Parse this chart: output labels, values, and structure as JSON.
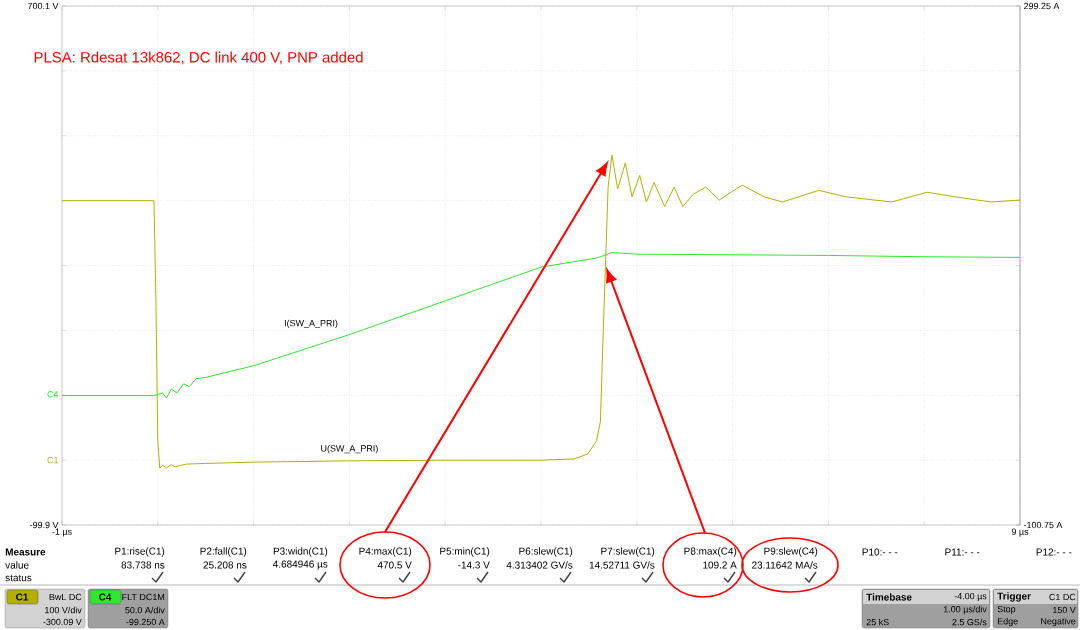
{
  "chart_data": {
    "type": "line",
    "title": "PLSA: Rdesat 13k862, DC link 400 V, PNP added",
    "xlim": [
      -1,
      9
    ],
    "xticks": [
      {
        "value": -1,
        "label": "-1 µs"
      },
      {
        "value": 0,
        "label": null
      },
      {
        "value": 1,
        "label": null
      },
      {
        "value": 2,
        "label": null
      },
      {
        "value": 3,
        "label": null
      },
      {
        "value": 4,
        "label": null
      },
      {
        "value": 5,
        "label": null
      },
      {
        "value": 6,
        "label": null
      },
      {
        "value": 7,
        "label": null
      },
      {
        "value": 8,
        "label": null
      },
      {
        "value": 9,
        "label": "9 µs"
      }
    ],
    "ylim": [
      -99.9,
      700.1
    ],
    "yticks": [
      {
        "value": -99.9,
        "label": "-99.9 V"
      },
      {
        "value": 0.1,
        "label": null
      },
      {
        "value": 100.1,
        "label": null
      },
      {
        "value": 200.1,
        "label": null
      },
      {
        "value": 300.1,
        "label": null
      },
      {
        "value": 400.1,
        "label": null
      },
      {
        "value": 500.1,
        "label": null
      },
      {
        "value": 600.1,
        "label": null
      },
      {
        "value": 700.1,
        "label": "700.1 V"
      }
    ],
    "y2lim": [
      -100.75,
      299.25
    ],
    "y2ticks": [
      {
        "value": -100.75,
        "label": "-100.75 A"
      },
      {
        "value": 299.25,
        "label": "299.25 A"
      }
    ],
    "grid": true,
    "series": [
      {
        "name": "U(SW_A_PRI)",
        "color": "#b4b000",
        "x": [
          -1,
          -0.04,
          -0.02,
          0.0,
          0.02,
          0.05,
          0.09,
          0.14,
          0.18,
          0.3,
          0.5,
          1.0,
          2.0,
          3.0,
          4.0,
          4.35,
          4.49,
          4.58,
          4.62,
          4.65,
          4.7,
          4.74,
          4.8,
          4.88,
          4.95,
          5.03,
          5.1,
          5.18,
          5.29,
          5.39,
          5.48,
          5.59,
          5.72,
          5.86,
          6.1,
          6.33,
          6.52,
          6.9,
          7.18,
          7.66,
          8.03,
          8.32,
          8.7,
          9.0
        ],
        "values": [
          400,
          400,
          250,
          30,
          -12,
          -8,
          -12,
          -7,
          -10,
          -6,
          -5,
          -3,
          -1,
          0,
          0,
          2,
          10,
          30,
          60,
          200,
          420,
          470.5,
          418,
          458,
          406,
          439,
          398,
          428,
          391,
          421,
          391,
          410,
          421,
          401,
          424,
          406,
          398,
          416,
          406,
          398,
          413,
          406,
          398,
          401
        ]
      },
      {
        "name": "I(SW_A_PRI)",
        "color": "#2ee82e",
        "axis": "y2",
        "x": [
          -1,
          -0.04,
          0.05,
          0.09,
          0.14,
          0.2,
          0.27,
          0.33,
          0.4,
          0.5,
          1.0,
          2.0,
          3.0,
          4.0,
          4.58,
          4.74,
          5.0,
          6.0,
          7.0,
          8.0,
          9.0
        ],
        "values": [
          -1,
          -1,
          1,
          -3,
          4,
          1,
          8,
          6,
          12,
          13,
          22,
          46,
          72,
          98,
          105,
          109.2,
          108,
          107.5,
          107,
          106,
          105.5
        ]
      }
    ],
    "annotations": [
      "Measure",
      "value",
      "status",
      "P1:rise(C1)",
      "P2:fall(C1)",
      "P3:widn(C1)",
      "P4:max(C1)",
      "P5:min(C1)",
      "P6:slew(C1)",
      "P7:slew(C1)",
      "P8:max(C4)",
      "P9:slew(C4)",
      "P10:- - -",
      "P11:- - -",
      "P12:- - -",
      "83.738 ns",
      "25.208 ns",
      "4.684946 µs",
      "470.5 V",
      "-14.3 V",
      "4.313402 GV/s",
      "14.52711 GV/s",
      "109.2 A",
      "23.11642 MA/s",
      "C1",
      "BwL DC",
      "100 V/div",
      "-300.09 V",
      "C4",
      "FLT DC1M",
      "50.0 A/div",
      "-99.250 A",
      "Timebase",
      "-4.00 µs",
      "1.00 µs/div",
      "25 kS",
      "2.5 GS/s",
      "Trigger",
      "C1 DC",
      "Stop",
      "150 V",
      "Edge",
      "Negative",
      "C1",
      "C4"
    ]
  }
}
